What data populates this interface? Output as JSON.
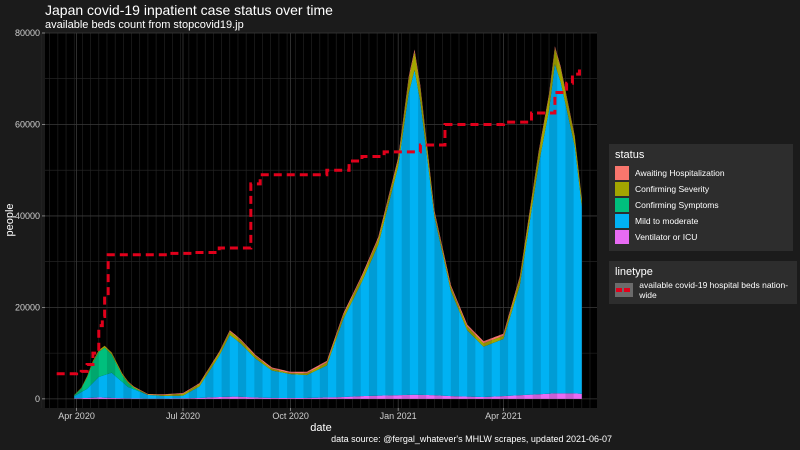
{
  "title": "Japan covid-19 inpatient case status over time",
  "subtitle": "available beds count from stopcovid19.jp",
  "caption": "data source: @fergal_whatever's MHLW scrapes, updated 2021-06-07",
  "colors": {
    "background": "#1b1b1b",
    "panel": "#000000",
    "grid": "#3a3a3a",
    "beds_line": "#e0001b"
  },
  "chart_data": {
    "type": "area",
    "stacked": true,
    "xlabel": "date",
    "ylabel": "people",
    "xlim": [
      "2020-03-05",
      "2021-06-20"
    ],
    "ylim": [
      -2000,
      80000
    ],
    "x_ticks": [
      {
        "date": "2020-04-01",
        "label": "Apr 2020"
      },
      {
        "date": "2020-07-01",
        "label": "Jul 2020"
      },
      {
        "date": "2020-10-01",
        "label": "Oct 2020"
      },
      {
        "date": "2021-01-01",
        "label": "Jan 2021"
      },
      {
        "date": "2021-04-01",
        "label": "Apr 2021"
      }
    ],
    "y_ticks": [
      0,
      20000,
      40000,
      60000,
      80000
    ],
    "legend_position": "right",
    "series": [
      {
        "name": "Ventilator or ICU",
        "color": "#e86bf3",
        "x": [
          "2020-03-30",
          "2020-04-10",
          "2020-04-20",
          "2020-05-01",
          "2020-05-15",
          "2020-06-01",
          "2020-06-15",
          "2020-07-01",
          "2020-07-15",
          "2020-08-01",
          "2020-08-15",
          "2020-09-01",
          "2020-09-15",
          "2020-10-01",
          "2020-10-15",
          "2020-11-01",
          "2020-11-15",
          "2020-12-01",
          "2020-12-15",
          "2021-01-01",
          "2021-01-15",
          "2021-02-01",
          "2021-02-15",
          "2021-03-01",
          "2021-03-15",
          "2021-04-01",
          "2021-04-15",
          "2021-05-01",
          "2021-05-15",
          "2021-06-01",
          "2021-06-07"
        ],
        "values": [
          100,
          200,
          300,
          200,
          100,
          50,
          50,
          100,
          200,
          400,
          500,
          300,
          200,
          200,
          200,
          300,
          400,
          600,
          700,
          800,
          900,
          800,
          600,
          500,
          400,
          600,
          800,
          1000,
          1200,
          1200,
          1100
        ]
      },
      {
        "name": "Mild to moderate",
        "color": "#00b2f3",
        "x": [
          "2020-03-30",
          "2020-04-10",
          "2020-04-20",
          "2020-05-01",
          "2020-05-15",
          "2020-06-01",
          "2020-06-15",
          "2020-07-01",
          "2020-07-15",
          "2020-08-01",
          "2020-08-10",
          "2020-08-20",
          "2020-09-01",
          "2020-09-15",
          "2020-10-01",
          "2020-10-15",
          "2020-11-01",
          "2020-11-15",
          "2020-12-01",
          "2020-12-15",
          "2021-01-01",
          "2021-01-10",
          "2021-01-15",
          "2021-01-20",
          "2021-02-01",
          "2021-02-15",
          "2021-03-01",
          "2021-03-15",
          "2021-04-01",
          "2021-04-15",
          "2021-05-01",
          "2021-05-10",
          "2021-05-15",
          "2021-05-20",
          "2021-06-01",
          "2021-06-07"
        ],
        "values": [
          500,
          2000,
          4500,
          5500,
          2500,
          800,
          600,
          600,
          2500,
          9000,
          13500,
          11500,
          8500,
          6000,
          5200,
          5000,
          7000,
          17000,
          25000,
          33000,
          50000,
          66000,
          71000,
          64000,
          39000,
          23000,
          14500,
          11000,
          12500,
          24000,
          50000,
          62000,
          72000,
          68000,
          54000,
          41000
        ]
      },
      {
        "name": "Confirming Symptoms",
        "color": "#00bf7d",
        "x": [
          "2020-03-30",
          "2020-04-05",
          "2020-04-10",
          "2020-04-15",
          "2020-04-20",
          "2020-04-25",
          "2020-05-01",
          "2020-05-10",
          "2020-05-20",
          "2020-06-01"
        ],
        "values": [
          200,
          800,
          2500,
          4500,
          5500,
          6000,
          4000,
          1500,
          300,
          0
        ]
      },
      {
        "name": "Confirming Severity",
        "color": "#a3a500",
        "x": [
          "2020-03-30",
          "2020-04-15",
          "2020-05-01",
          "2020-06-01",
          "2020-08-10",
          "2020-10-01",
          "2021-01-01",
          "2021-01-15",
          "2021-02-01",
          "2021-04-01",
          "2021-05-15",
          "2021-06-07"
        ],
        "values": [
          50,
          300,
          400,
          100,
          800,
          200,
          1500,
          4000,
          900,
          700,
          3500,
          1500
        ]
      },
      {
        "name": "Awaiting Hospitalization",
        "color": "#f8766d",
        "x": [
          "2020-03-30",
          "2021-01-15",
          "2021-05-15",
          "2021-06-07"
        ],
        "values": [
          0,
          500,
          400,
          200
        ]
      }
    ],
    "lines": [
      {
        "name": "available covid-19 hospital beds nation-wide",
        "color": "#e0001b",
        "dashed": true,
        "x": [
          "2020-03-15",
          "2020-03-25",
          "2020-04-01",
          "2020-04-05",
          "2020-04-10",
          "2020-04-15",
          "2020-04-20",
          "2020-04-23",
          "2020-04-25",
          "2020-04-28",
          "2020-05-05",
          "2020-05-20",
          "2020-06-01",
          "2020-06-20",
          "2020-07-10",
          "2020-08-01",
          "2020-08-05",
          "2020-08-25",
          "2020-08-28",
          "2020-09-05",
          "2020-10-01",
          "2020-11-01",
          "2020-11-20",
          "2020-12-01",
          "2020-12-20",
          "2021-01-01",
          "2021-01-20",
          "2021-02-10",
          "2021-03-01",
          "2021-03-20",
          "2021-04-01",
          "2021-04-20",
          "2021-04-25",
          "2021-05-01",
          "2021-05-15",
          "2021-05-25",
          "2021-05-30",
          "2021-06-05"
        ],
        "values": [
          5500,
          5500,
          5800,
          6000,
          7500,
          10000,
          16000,
          18000,
          23000,
          31500,
          31500,
          31500,
          31500,
          31800,
          32000,
          33000,
          33000,
          33000,
          47000,
          49000,
          49000,
          50000,
          52000,
          53000,
          54000,
          54000,
          55500,
          60000,
          60000,
          60000,
          60500,
          60500,
          62500,
          62500,
          67000,
          69000,
          71000,
          72500
        ]
      }
    ],
    "legends": [
      {
        "title": "status",
        "entries": [
          "Awaiting Hospitalization",
          "Confirming Severity",
          "Confirming Symptoms",
          "Mild to moderate",
          "Ventilator or ICU"
        ]
      },
      {
        "title": "linetype",
        "entries": [
          "available covid-19 hospital beds nation-wide"
        ]
      }
    ]
  }
}
